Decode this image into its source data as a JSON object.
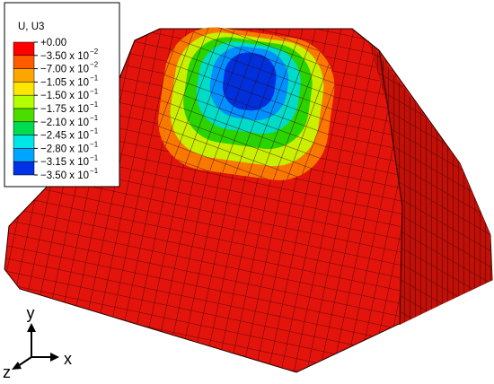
{
  "legend": {
    "title": "U, U3",
    "entries": [
      {
        "text": "+0.00",
        "exp": null
      },
      {
        "text": "−3.50 x 10",
        "exp": "−2"
      },
      {
        "text": "−7.00 x 10",
        "exp": "−2"
      },
      {
        "text": "−1.05 x 10",
        "exp": "−1"
      },
      {
        "text": "−1.50 x 10",
        "exp": "−1"
      },
      {
        "text": "−1.75 x 10",
        "exp": "−1"
      },
      {
        "text": "−2.10 x 10",
        "exp": "−1"
      },
      {
        "text": "−2.45 x 10",
        "exp": "−1"
      },
      {
        "text": "−2.80 x 10",
        "exp": "−1"
      },
      {
        "text": "−3.15 x 10",
        "exp": "−1"
      },
      {
        "text": "−3.50 x 10",
        "exp": "−1"
      }
    ],
    "colors": [
      "#ff0000",
      "#ff5a00",
      "#ffa500",
      "#ffe600",
      "#b4ff00",
      "#4bdc00",
      "#00dc50",
      "#00e6e6",
      "#00a5ff",
      "#0032e6"
    ]
  },
  "triad": {
    "x": "x",
    "y": "y",
    "z": "z"
  }
}
